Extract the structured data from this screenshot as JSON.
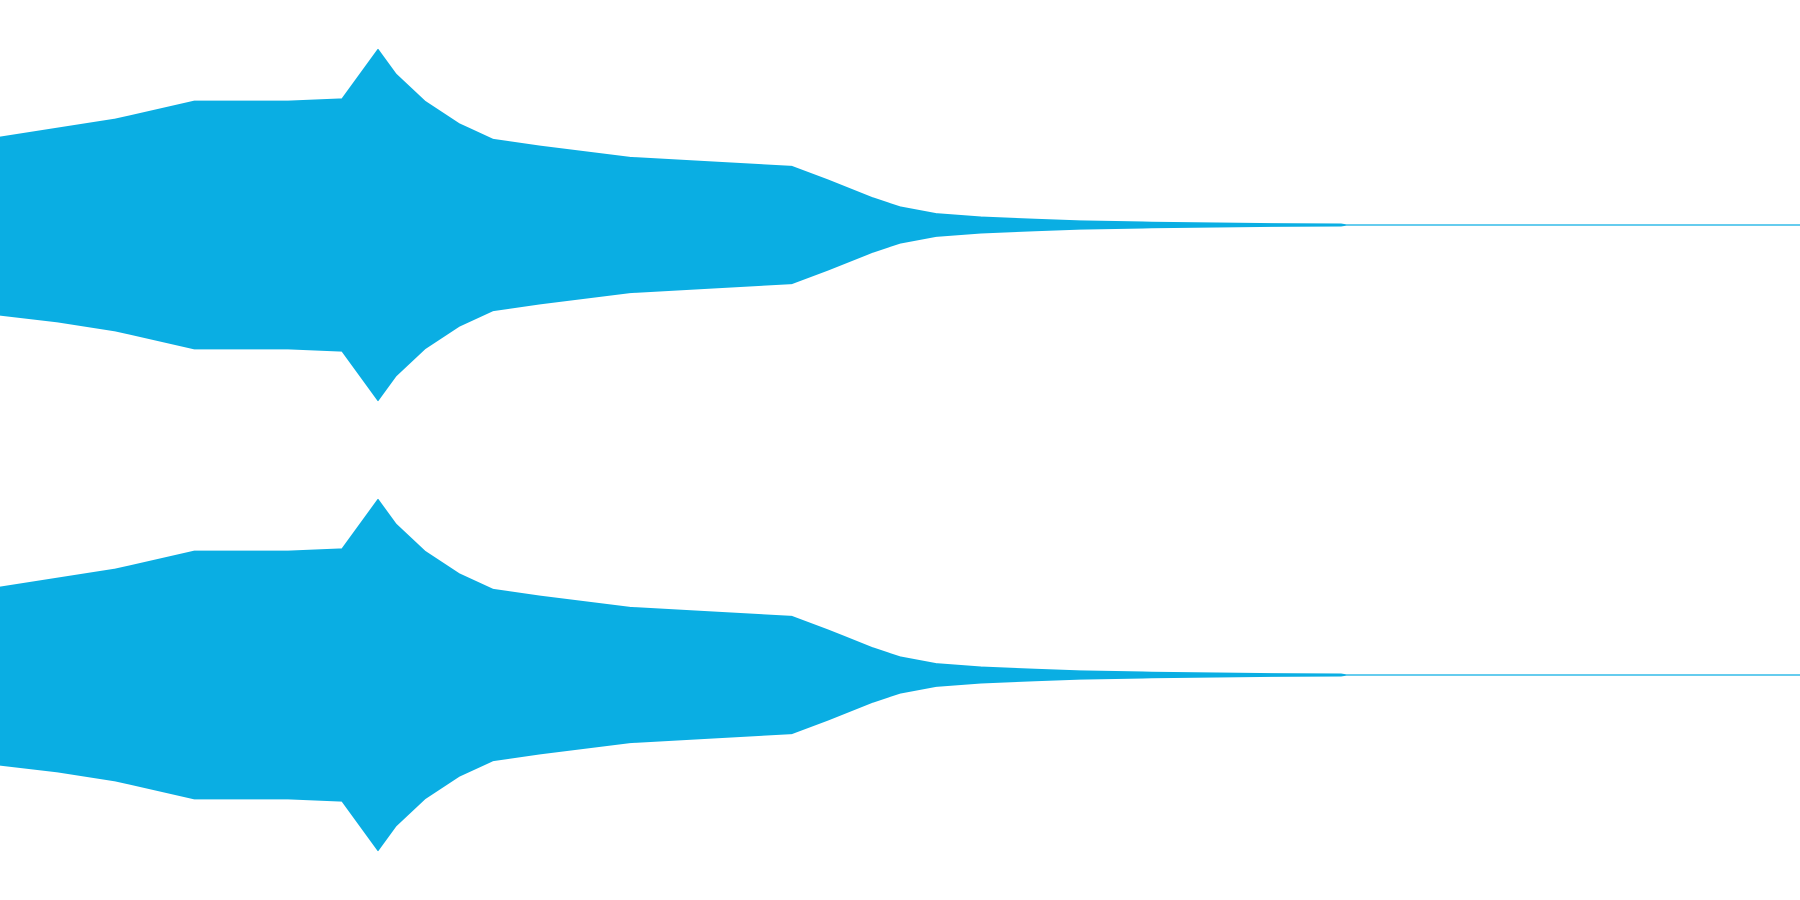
{
  "chart_data": {
    "type": "waveform",
    "color": "#0aaee3",
    "xlim": [
      0,
      1
    ],
    "ylim": [
      -1,
      1
    ],
    "x": [
      0,
      0.032,
      0.064,
      0.108,
      0.14,
      0.16,
      0.19,
      0.21,
      0.22,
      0.236,
      0.255,
      0.274,
      0.3,
      0.35,
      0.395,
      0.44,
      0.46,
      0.485,
      0.5,
      0.52,
      0.545,
      0.575,
      0.6,
      0.64,
      0.7,
      0.745,
      0.748,
      1
    ],
    "channels": [
      {
        "upper": [
          0.39,
          0.43,
          0.47,
          0.55,
          0.55,
          0.55,
          0.56,
          0.78,
          0.67,
          0.55,
          0.45,
          0.38,
          0.35,
          0.3,
          0.28,
          0.26,
          0.2,
          0.12,
          0.08,
          0.05,
          0.035,
          0.025,
          0.018,
          0.012,
          0.006,
          0.004,
          0,
          0
        ],
        "lower": [
          -0.4,
          -0.43,
          -0.47,
          -0.55,
          -0.55,
          -0.55,
          -0.56,
          -0.78,
          -0.67,
          -0.55,
          -0.45,
          -0.38,
          -0.35,
          -0.3,
          -0.28,
          -0.26,
          -0.2,
          -0.12,
          -0.08,
          -0.05,
          -0.035,
          -0.025,
          -0.018,
          -0.012,
          -0.006,
          -0.004,
          0,
          0
        ]
      },
      {
        "upper": [
          0.39,
          0.43,
          0.47,
          0.55,
          0.55,
          0.55,
          0.56,
          0.78,
          0.67,
          0.55,
          0.45,
          0.38,
          0.35,
          0.3,
          0.28,
          0.26,
          0.2,
          0.12,
          0.08,
          0.05,
          0.035,
          0.025,
          0.018,
          0.012,
          0.006,
          0.004,
          0,
          0
        ],
        "lower": [
          -0.4,
          -0.43,
          -0.47,
          -0.55,
          -0.55,
          -0.55,
          -0.56,
          -0.78,
          -0.67,
          -0.55,
          -0.45,
          -0.38,
          -0.35,
          -0.3,
          -0.28,
          -0.26,
          -0.2,
          -0.12,
          -0.08,
          -0.05,
          -0.035,
          -0.025,
          -0.018,
          -0.012,
          -0.006,
          -0.004,
          0,
          0
        ]
      }
    ]
  }
}
